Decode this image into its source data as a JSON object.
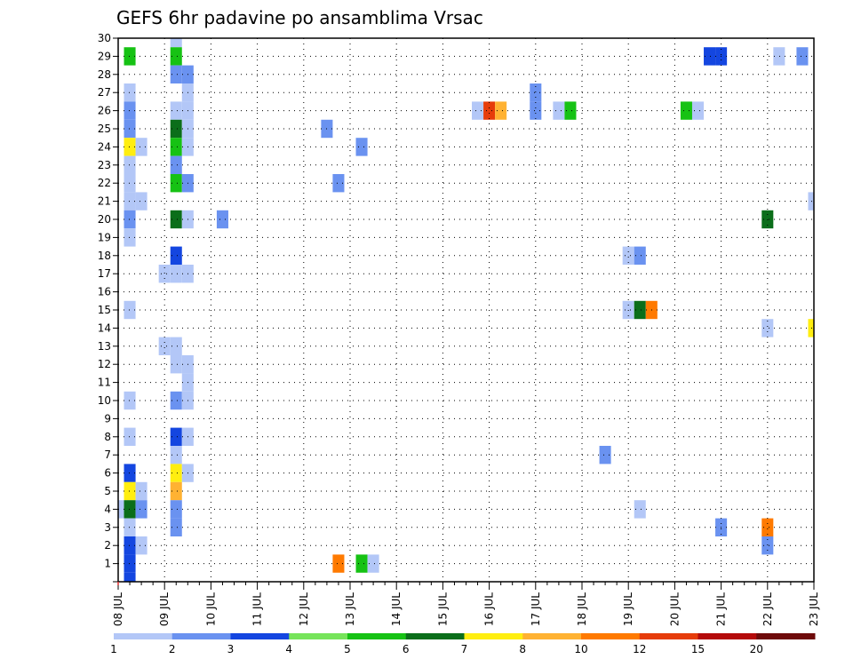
{
  "chart_data": {
    "type": "heatmap",
    "title": "GEFS 6hr padavine po ansamblima Vrsac",
    "xlabel": "",
    "ylabel": "",
    "x_tick_labels": [
      "08 JUL",
      "09 JUL",
      "10 JUL",
      "11 JUL",
      "12 JUL",
      "13 JUL",
      "14 JUL",
      "15 JUL",
      "16 JUL",
      "17 JUL",
      "18 JUL",
      "19 JUL",
      "20 JUL",
      "21 JUL",
      "22 JUL",
      "23 JUL"
    ],
    "y_tick_labels": [
      "1",
      "2",
      "3",
      "4",
      "5",
      "6",
      "7",
      "8",
      "9",
      "10",
      "11",
      "12",
      "13",
      "14",
      "15",
      "16",
      "17",
      "18",
      "19",
      "20",
      "21",
      "22",
      "23",
      "24",
      "25",
      "26",
      "27",
      "28",
      "29",
      "30"
    ],
    "ylim": [
      0,
      30
    ],
    "xlim_steps": [
      0,
      60
    ],
    "steps_per_day": 4,
    "grid": true,
    "colorbar": {
      "labels": [
        "1",
        "2",
        "3",
        "4",
        "5",
        "6",
        "7",
        "8",
        "10",
        "12",
        "15",
        "20"
      ],
      "colors": [
        "#b3c7f7",
        "#6a92f0",
        "#1446e0",
        "#76e45a",
        "#16c214",
        "#0b6e1a",
        "#ffee10",
        "#ffb232",
        "#ff7a00",
        "#e63c0a",
        "#b40a0a",
        "#6e0a0a"
      ]
    },
    "cells": [
      [
        1,
        29,
        5
      ],
      [
        5,
        30,
        1
      ],
      [
        5,
        29,
        5
      ],
      [
        6,
        28,
        2
      ],
      [
        5,
        28,
        2
      ],
      [
        6,
        27,
        1
      ],
      [
        1,
        27,
        1
      ],
      [
        1,
        26,
        2
      ],
      [
        5,
        26,
        1
      ],
      [
        6,
        26,
        1
      ],
      [
        1,
        25,
        2
      ],
      [
        5,
        25,
        6
      ],
      [
        6,
        25,
        1
      ],
      [
        1,
        24,
        7
      ],
      [
        2,
        24,
        1
      ],
      [
        5,
        24,
        5
      ],
      [
        6,
        24,
        1
      ],
      [
        1,
        23,
        1
      ],
      [
        5,
        23,
        2
      ],
      [
        1,
        22,
        1
      ],
      [
        5,
        22,
        5
      ],
      [
        6,
        22,
        2
      ],
      [
        1,
        21,
        1
      ],
      [
        2,
        21,
        1
      ],
      [
        1,
        20,
        2
      ],
      [
        5,
        20,
        6
      ],
      [
        6,
        20,
        1
      ],
      [
        1,
        19,
        1
      ],
      [
        5,
        18,
        3
      ],
      [
        4,
        17,
        1
      ],
      [
        5,
        17,
        1
      ],
      [
        6,
        17,
        1
      ],
      [
        1,
        15,
        1
      ],
      [
        4,
        13,
        1
      ],
      [
        5,
        13,
        1
      ],
      [
        5,
        12,
        1
      ],
      [
        6,
        12,
        1
      ],
      [
        6,
        11,
        1
      ],
      [
        1,
        10,
        1
      ],
      [
        5,
        10,
        2
      ],
      [
        6,
        10,
        1
      ],
      [
        1,
        8,
        1
      ],
      [
        5,
        8,
        3
      ],
      [
        6,
        8,
        1
      ],
      [
        5,
        7,
        1
      ],
      [
        1,
        6,
        3
      ],
      [
        5,
        6,
        7
      ],
      [
        6,
        6,
        1
      ],
      [
        1,
        5,
        7
      ],
      [
        2,
        5,
        1
      ],
      [
        5,
        5,
        8
      ],
      [
        0,
        4,
        1
      ],
      [
        1,
        4,
        6
      ],
      [
        2,
        4,
        2
      ],
      [
        5,
        4,
        2
      ],
      [
        1,
        3,
        1
      ],
      [
        5,
        3,
        2
      ],
      [
        1,
        2,
        3
      ],
      [
        2,
        2,
        1
      ],
      [
        1,
        1,
        3
      ],
      [
        1,
        0,
        3
      ],
      [
        9,
        20,
        2
      ],
      [
        18,
        25,
        2
      ],
      [
        19,
        22,
        2
      ],
      [
        21,
        24,
        2
      ],
      [
        19,
        1,
        9
      ],
      [
        21,
        1,
        5
      ],
      [
        22,
        1,
        1
      ],
      [
        31,
        26,
        1
      ],
      [
        32,
        26,
        10
      ],
      [
        33,
        26,
        8
      ],
      [
        36,
        26,
        2
      ],
      [
        36,
        27,
        2
      ],
      [
        38,
        26,
        1
      ],
      [
        39,
        26,
        5
      ],
      [
        42,
        7,
        2
      ],
      [
        44,
        18,
        1
      ],
      [
        45,
        18,
        2
      ],
      [
        44,
        15,
        1
      ],
      [
        45,
        15,
        6
      ],
      [
        46,
        15,
        9
      ],
      [
        45,
        4,
        1
      ],
      [
        49,
        26,
        5
      ],
      [
        50,
        26,
        1
      ],
      [
        51,
        29,
        3
      ],
      [
        52,
        29,
        3
      ],
      [
        52,
        3,
        2
      ],
      [
        56,
        20,
        6
      ],
      [
        56,
        14,
        1
      ],
      [
        56,
        3,
        9
      ],
      [
        56,
        2,
        2
      ],
      [
        57,
        29,
        1
      ],
      [
        59,
        29,
        2
      ],
      [
        60,
        21,
        1
      ],
      [
        60,
        14,
        7
      ]
    ]
  }
}
